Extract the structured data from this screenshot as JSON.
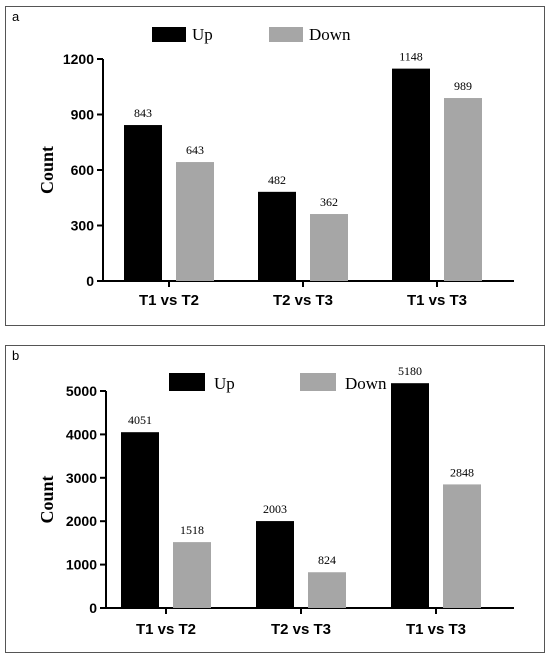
{
  "colors": {
    "up": "#000000",
    "down": "#a6a6a6",
    "axis": "#000000"
  },
  "chart_data": [
    {
      "id": "a",
      "panel_label": "a",
      "type": "bar",
      "categories": [
        "T1 vs T2",
        "T2 vs T3",
        "T1 vs T3"
      ],
      "series": [
        {
          "name": "Up",
          "values": [
            843,
            482,
            1148
          ]
        },
        {
          "name": "Down",
          "values": [
            643,
            362,
            989
          ]
        }
      ],
      "value_labels": [
        [
          "843",
          "482",
          "1148"
        ],
        [
          "643",
          "362",
          "989"
        ]
      ],
      "ylabel": "Count",
      "ylim": [
        0,
        1200
      ],
      "yticks": [
        0,
        300,
        600,
        900,
        1200
      ],
      "ytick_labels": [
        "0",
        "300",
        "600",
        "900",
        "1200"
      ],
      "grid": false,
      "legend_position": "top"
    },
    {
      "id": "b",
      "panel_label": "b",
      "type": "bar",
      "categories": [
        "T1 vs T2",
        "T2 vs T3",
        "T1 vs T3"
      ],
      "series": [
        {
          "name": "Up",
          "values": [
            4051,
            2003,
            5180
          ]
        },
        {
          "name": "Down",
          "values": [
            1518,
            824,
            2848
          ]
        }
      ],
      "value_labels": [
        [
          "4051",
          "2003",
          "5180"
        ],
        [
          "1518",
          "824",
          "2848"
        ]
      ],
      "ylabel": "Count",
      "ylim": [
        0,
        5000
      ],
      "yticks": [
        0,
        1000,
        2000,
        3000,
        4000,
        5000
      ],
      "ytick_labels": [
        "0",
        "1000",
        "2000",
        "3000",
        "4000",
        "5000"
      ],
      "grid": false,
      "legend_position": "top"
    }
  ]
}
